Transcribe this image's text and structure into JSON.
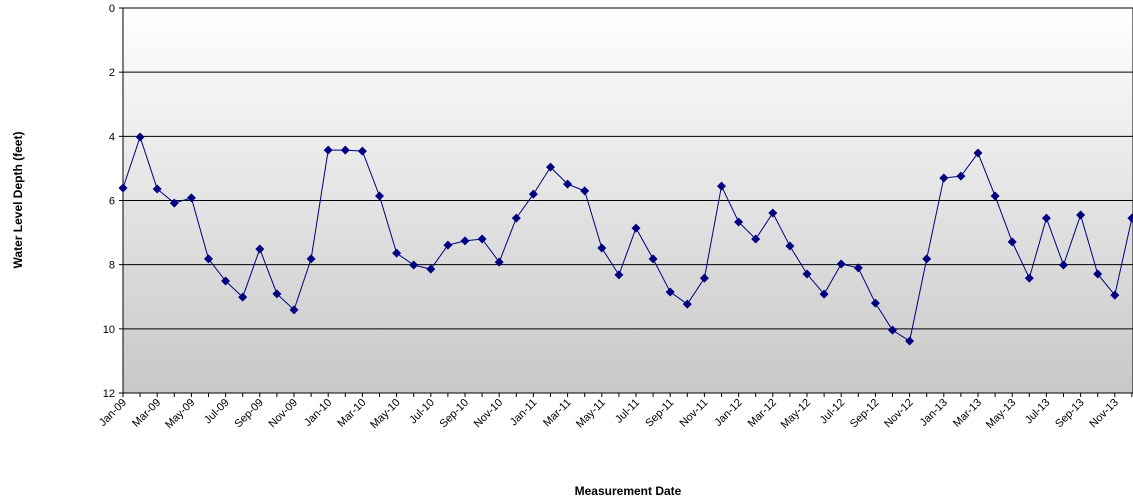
{
  "chart_data": {
    "type": "line",
    "x_label": "Measurement Date",
    "y_label": "Water Level Depth (feet)",
    "categories": [
      "Jan-09",
      null,
      "Mar-09",
      null,
      "May-09",
      null,
      "Jul-09",
      null,
      "Sep-09",
      null,
      "Nov-09",
      null,
      "Jan-10",
      null,
      "Mar-10",
      null,
      "May-10",
      null,
      "Jul-10",
      null,
      "Sep-10",
      null,
      "Nov-10",
      null,
      "Jan-11",
      null,
      "Mar-11",
      null,
      "May-11",
      null,
      "Jul-11",
      null,
      "Sep-11",
      null,
      "Nov-11",
      null,
      "Jan-12",
      null,
      "Mar-12",
      null,
      "May-12",
      null,
      "Jul-12",
      null,
      "Sep-12",
      null,
      "Nov-12",
      null,
      "Jan-13",
      null,
      "Mar-13",
      null,
      "May-13",
      null,
      "Jul-13",
      null,
      "Sep-13",
      null,
      "Nov-13",
      null
    ],
    "series": [
      {
        "name": "Water Level Depth",
        "color": "#000080",
        "values": [
          5.61,
          4.02,
          5.64,
          6.08,
          5.92,
          7.82,
          8.51,
          9.01,
          7.51,
          8.91,
          9.41,
          7.82,
          4.43,
          4.43,
          4.46,
          5.86,
          7.64,
          8.01,
          8.14,
          7.39,
          7.26,
          7.2,
          7.92,
          6.55,
          5.8,
          4.96,
          5.49,
          5.7,
          7.48,
          8.32,
          6.86,
          7.82,
          8.85,
          9.23,
          8.42,
          5.55,
          6.67,
          7.2,
          6.39,
          7.42,
          8.29,
          8.92,
          7.98,
          8.1,
          9.2,
          10.04,
          10.38,
          7.82,
          5.3,
          5.24,
          4.52,
          5.86,
          7.29,
          8.42,
          6.55,
          8.01,
          6.45,
          8.29,
          8.95,
          6.55
        ]
      }
    ],
    "ylim": [
      0,
      12
    ],
    "yticks": [
      0,
      2,
      4,
      6,
      8,
      10,
      12
    ],
    "y_inverted": true,
    "grid": true
  }
}
